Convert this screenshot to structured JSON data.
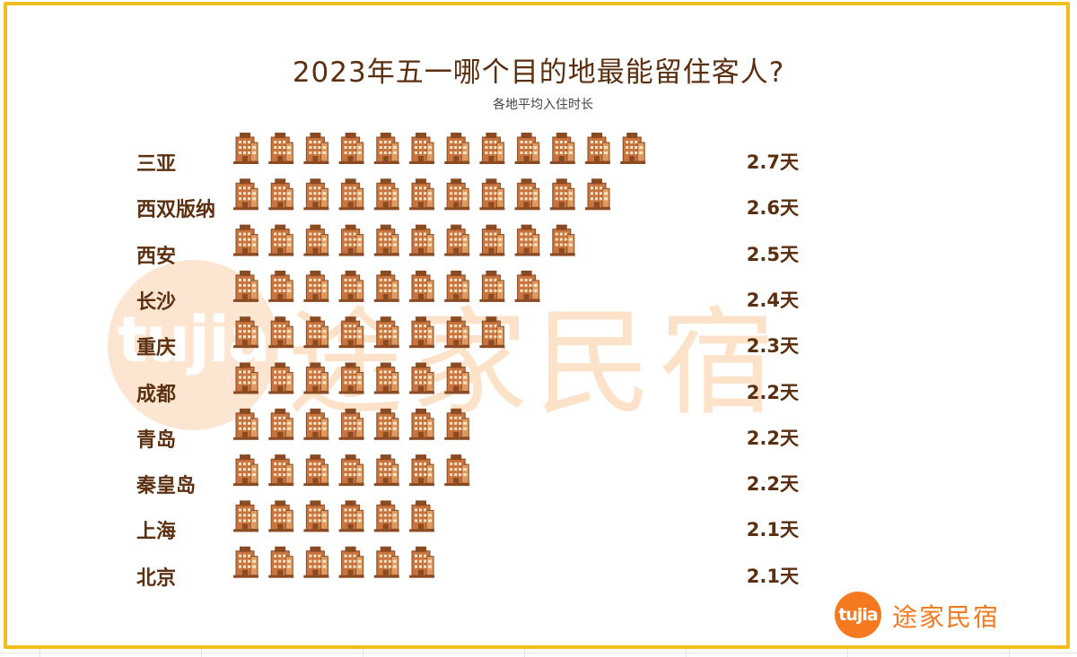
{
  "chart_data": {
    "type": "bar",
    "title": "2023年五一哪个目的地最能留住客人?",
    "subtitle": "各地平均入住时长",
    "categories": [
      "三亚",
      "西双版纳",
      "西安",
      "长沙",
      "重庆",
      "成都",
      "青岛",
      "秦皇岛",
      "上海",
      "北京"
    ],
    "values": [
      2.7,
      2.6,
      2.5,
      2.4,
      2.3,
      2.2,
      2.2,
      2.2,
      2.1,
      2.1
    ],
    "value_labels": [
      "2.7天",
      "2.6天",
      "2.5天",
      "2.4天",
      "2.3天",
      "2.2天",
      "2.2天",
      "2.2天",
      "2.1天",
      "2.1天"
    ],
    "icon_counts": [
      12,
      11,
      10,
      9,
      8,
      7,
      7,
      7,
      6,
      6
    ],
    "mark_icon": "building-icon",
    "grid": false,
    "legend": "none"
  },
  "watermark": {
    "logo_text": "tujia",
    "brand_text": "途家民宿"
  },
  "logo": {
    "badge_text": "tujia",
    "brand_text": "途家民宿"
  },
  "colors": {
    "frame": "#f2bd1d",
    "text": "#5b2f0f",
    "building": "#c9743f",
    "brand": "#f57a1f",
    "watermark": "#fbd9b6"
  }
}
